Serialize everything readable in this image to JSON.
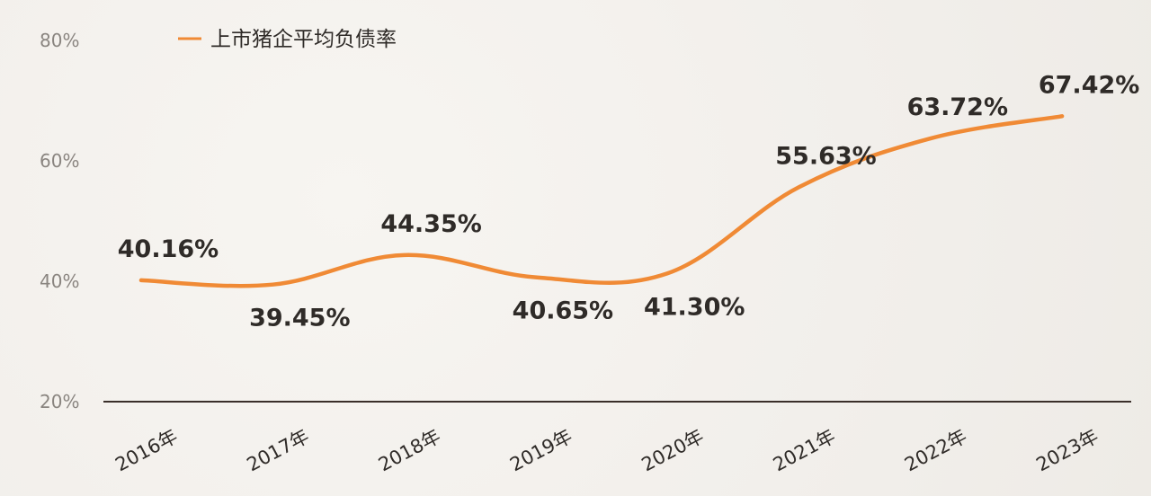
{
  "chart_data": {
    "type": "line",
    "categories": [
      "2016年",
      "2017年",
      "2018年",
      "2019年",
      "2020年",
      "2021年",
      "2022年",
      "2023年"
    ],
    "series": [
      {
        "name": "上市猪企平均负债率",
        "values": [
          40.16,
          39.45,
          44.35,
          40.65,
          41.3,
          55.63,
          63.72,
          67.42
        ],
        "labels": [
          "40.16%",
          "39.45%",
          "44.35%",
          "40.65%",
          "41.30%",
          "55.63%",
          "63.72%",
          "67.42%"
        ],
        "label_positions": [
          "above",
          "below",
          "above",
          "below",
          "below",
          "above",
          "above",
          "above"
        ]
      }
    ],
    "y_ticks": [
      20,
      40,
      60,
      80
    ],
    "y_tick_labels": [
      "20%",
      "40%",
      "60%",
      "80%"
    ],
    "ylim": [
      20,
      80
    ],
    "grid": false,
    "legend": "top-left",
    "colors": {
      "line": "#f08a35",
      "axis": "#3a2f2a",
      "tick_text": "#8a8580",
      "text": "#2f2b28"
    }
  }
}
